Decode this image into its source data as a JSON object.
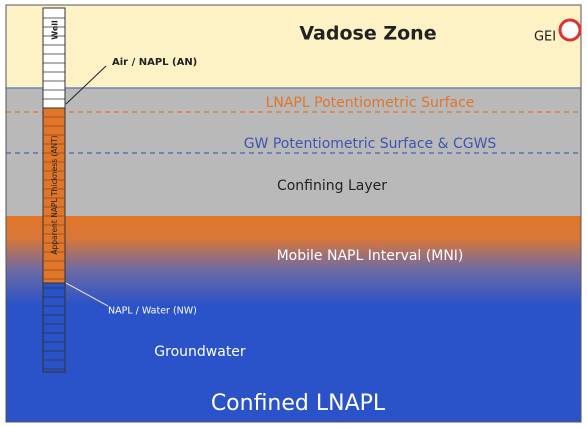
{
  "zones": {
    "vadose": "Vadose Zone",
    "confining": "Confining Layer",
    "mobile": "Mobile NAPL Interval (MNI)",
    "groundwater": "Groundwater"
  },
  "surfaces": {
    "lnapl": "LNAPL Potentiometric Surface",
    "gw": "GW Potentiometric Surface & CGWS"
  },
  "well": {
    "label": "Well",
    "thickness": "Apparent NAPL Thickness (ANT)",
    "air_napl": "Air / NAPL (AN)",
    "napl_water": "NAPL / Water (NW)"
  },
  "logo": "GEI",
  "caption": "Confined LNAPL"
}
